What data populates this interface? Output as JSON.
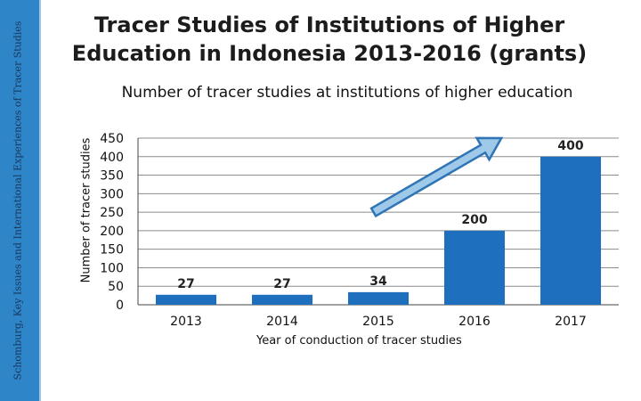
{
  "slide": {
    "title": "Tracer Studies of Institutions of Higher Education in Indonesia 2013-2016 (grants)",
    "side_label": "Schomburg, Key Issues and International Experiences of Tracer Studies"
  },
  "chart_data": {
    "type": "bar",
    "title": "Number of tracer studies at institutions of higher education",
    "xlabel": "Year of conduction of tracer studies",
    "ylabel": "Number of tracer studies",
    "categories": [
      "2013",
      "2014",
      "2015",
      "2016",
      "2017"
    ],
    "values": [
      27,
      27,
      34,
      200,
      400
    ],
    "data_labels": [
      "27",
      "27",
      "34",
      "200",
      "400"
    ],
    "ylim": [
      0,
      450
    ],
    "yticks": [
      0,
      50,
      100,
      150,
      200,
      250,
      300,
      350,
      400,
      450
    ],
    "grid": true,
    "legend": "none",
    "annotation": "upward trend arrow",
    "colors": {
      "bar": "#1f6fbf",
      "arrow": "#9ec9e8",
      "arrow_stroke": "#2f75b5",
      "sidebar": "#2e86c8"
    }
  }
}
